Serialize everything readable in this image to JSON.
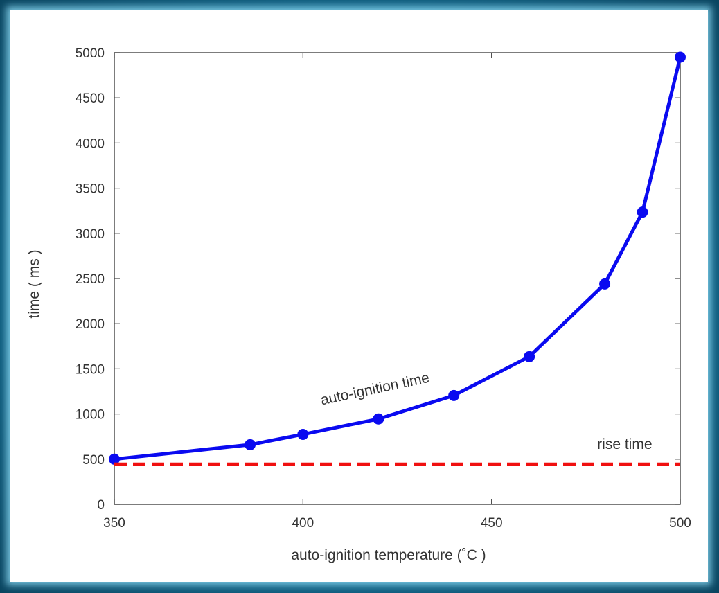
{
  "chart_data": {
    "type": "line",
    "xlabel": "auto-ignition temperature (˚C )",
    "ylabel": "time ( ms )",
    "xlim": [
      350,
      500
    ],
    "ylim": [
      0,
      5000
    ],
    "x_ticks": [
      350,
      400,
      450,
      500
    ],
    "y_ticks": [
      0,
      500,
      1000,
      1500,
      2000,
      2500,
      3000,
      3500,
      4000,
      4500,
      5000
    ],
    "series": [
      {
        "color": "#0a0af0",
        "style": "solid",
        "markers": true,
        "x": [
          350,
          386,
          400,
          420,
          440,
          460,
          480,
          490,
          500
        ],
        "y": [
          500,
          660,
          775,
          945,
          1205,
          1635,
          2440,
          3235,
          4950
        ]
      },
      {
        "color": "#f01010",
        "style": "dashed",
        "markers": false,
        "x": [
          350,
          500
        ],
        "y": [
          445,
          445
        ]
      }
    ],
    "annotations": [
      {
        "text": "auto-ignition time",
        "x": 405,
        "y": 1100
      },
      {
        "text": "rise time",
        "x": 478,
        "y": 615
      }
    ],
    "grid": false
  }
}
